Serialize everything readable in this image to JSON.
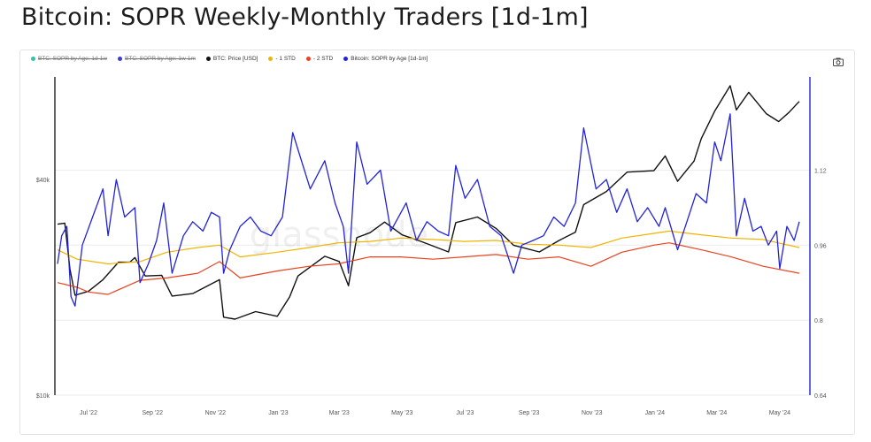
{
  "page": {
    "title": "Bitcoin: SOPR Weekly-Monthly Traders [1d-1m]"
  },
  "watermark": "glassnode",
  "legend": [
    {
      "label": "BTC: SOPR by Age: 1d-1w",
      "color": "#2ec4a5",
      "enabled": false
    },
    {
      "label": "BTC: SOPR by Age: 1w-1m",
      "color": "#3b3bd6",
      "enabled": false
    },
    {
      "label": "BTC: Price [USD]",
      "color": "#111111",
      "enabled": true
    },
    {
      "label": "- 1 STD",
      "color": "#f0b400",
      "enabled": true
    },
    {
      "label": "- 2 STD",
      "color": "#e8431e",
      "enabled": true
    },
    {
      "label": "Bitcoin: SOPR by Age [1d-1m]",
      "color": "#2323d8",
      "enabled": true
    }
  ],
  "toolbar": {
    "screenshot_icon": "camera-icon"
  },
  "chart_data": {
    "type": "line",
    "left_axis": {
      "label": "",
      "scale": "log",
      "range": [
        10000,
        73000
      ],
      "ticks": [
        "$10k",
        "$40k"
      ]
    },
    "right_axis": {
      "label": "",
      "scale": "linear",
      "range": [
        0.64,
        1.3
      ],
      "ticks": [
        "0.64",
        "0.8",
        "0.96",
        "1.12"
      ]
    },
    "x_range": [
      "2022-06-01",
      "2024-05-20"
    ],
    "x_ticks": [
      "Jul '22",
      "Sep '22",
      "Nov '22",
      "Jan '23",
      "Mar '23",
      "May '23",
      "Jul '23",
      "Sep '23",
      "Nov '23",
      "Jan '24",
      "Mar '24",
      "May '24"
    ],
    "series": [
      {
        "name": "BTC: Price [USD]",
        "axis": "left",
        "color": "#111111",
        "points": [
          [
            "2022-06-01",
            30000
          ],
          [
            "2022-06-08",
            30200
          ],
          [
            "2022-06-13",
            22500
          ],
          [
            "2022-06-18",
            19000
          ],
          [
            "2022-07-01",
            19500
          ],
          [
            "2022-07-15",
            21000
          ],
          [
            "2022-07-30",
            23500
          ],
          [
            "2022-08-10",
            23500
          ],
          [
            "2022-08-15",
            24200
          ],
          [
            "2022-08-25",
            21500
          ],
          [
            "2022-09-10",
            21600
          ],
          [
            "2022-09-20",
            18900
          ],
          [
            "2022-10-10",
            19200
          ],
          [
            "2022-11-05",
            21000
          ],
          [
            "2022-11-09",
            16500
          ],
          [
            "2022-11-20",
            16300
          ],
          [
            "2022-12-10",
            17100
          ],
          [
            "2022-12-31",
            16600
          ],
          [
            "2023-01-12",
            18800
          ],
          [
            "2023-01-20",
            21500
          ],
          [
            "2023-02-15",
            24400
          ],
          [
            "2023-03-01",
            23600
          ],
          [
            "2023-03-10",
            20200
          ],
          [
            "2023-03-18",
            27500
          ],
          [
            "2023-03-31",
            28400
          ],
          [
            "2023-04-14",
            30400
          ],
          [
            "2023-05-01",
            28000
          ],
          [
            "2023-05-20",
            26800
          ],
          [
            "2023-06-15",
            25100
          ],
          [
            "2023-06-22",
            30300
          ],
          [
            "2023-07-13",
            31400
          ],
          [
            "2023-07-31",
            29200
          ],
          [
            "2023-08-17",
            26200
          ],
          [
            "2023-09-11",
            25100
          ],
          [
            "2023-09-30",
            27000
          ],
          [
            "2023-10-16",
            28500
          ],
          [
            "2023-10-24",
            34000
          ],
          [
            "2023-11-15",
            37000
          ],
          [
            "2023-12-05",
            41900
          ],
          [
            "2023-12-31",
            42300
          ],
          [
            "2024-01-11",
            46500
          ],
          [
            "2024-01-23",
            39500
          ],
          [
            "2024-02-08",
            45000
          ],
          [
            "2024-02-15",
            52000
          ],
          [
            "2024-02-28",
            62000
          ],
          [
            "2024-03-14",
            73000
          ],
          [
            "2024-03-20",
            62500
          ],
          [
            "2024-04-01",
            70000
          ],
          [
            "2024-04-18",
            61000
          ],
          [
            "2024-04-30",
            58000
          ],
          [
            "2024-05-10",
            61500
          ],
          [
            "2024-05-20",
            66000
          ]
        ]
      },
      {
        "name": "- 1 STD",
        "axis": "right",
        "color": "#f0b400",
        "points": [
          [
            "2022-06-01",
            0.95
          ],
          [
            "2022-06-20",
            0.93
          ],
          [
            "2022-07-20",
            0.92
          ],
          [
            "2022-08-20",
            0.925
          ],
          [
            "2022-09-15",
            0.945
          ],
          [
            "2022-10-15",
            0.955
          ],
          [
            "2022-11-05",
            0.96
          ],
          [
            "2022-11-25",
            0.935
          ],
          [
            "2022-12-31",
            0.945
          ],
          [
            "2023-01-31",
            0.955
          ],
          [
            "2023-02-28",
            0.965
          ],
          [
            "2023-03-31",
            0.968
          ],
          [
            "2023-04-30",
            0.975
          ],
          [
            "2023-05-31",
            0.972
          ],
          [
            "2023-06-30",
            0.968
          ],
          [
            "2023-07-31",
            0.97
          ],
          [
            "2023-08-31",
            0.962
          ],
          [
            "2023-09-30",
            0.96
          ],
          [
            "2023-10-31",
            0.955
          ],
          [
            "2023-11-30",
            0.975
          ],
          [
            "2023-12-31",
            0.985
          ],
          [
            "2024-01-15",
            0.99
          ],
          [
            "2024-02-15",
            0.982
          ],
          [
            "2024-03-15",
            0.975
          ],
          [
            "2024-04-15",
            0.972
          ],
          [
            "2024-05-20",
            0.955
          ]
        ]
      },
      {
        "name": "- 2 STD",
        "axis": "right",
        "color": "#e8431e",
        "points": [
          [
            "2022-06-01",
            0.88
          ],
          [
            "2022-06-20",
            0.87
          ],
          [
            "2022-07-01",
            0.86
          ],
          [
            "2022-07-20",
            0.855
          ],
          [
            "2022-08-20",
            0.885
          ],
          [
            "2022-09-15",
            0.89
          ],
          [
            "2022-10-15",
            0.9
          ],
          [
            "2022-11-05",
            0.925
          ],
          [
            "2022-11-25",
            0.89
          ],
          [
            "2022-12-31",
            0.905
          ],
          [
            "2023-01-31",
            0.915
          ],
          [
            "2023-02-28",
            0.92
          ],
          [
            "2023-03-31",
            0.935
          ],
          [
            "2023-04-30",
            0.935
          ],
          [
            "2023-05-31",
            0.93
          ],
          [
            "2023-06-30",
            0.935
          ],
          [
            "2023-07-31",
            0.94
          ],
          [
            "2023-08-31",
            0.93
          ],
          [
            "2023-09-30",
            0.935
          ],
          [
            "2023-10-31",
            0.915
          ],
          [
            "2023-11-30",
            0.945
          ],
          [
            "2023-12-31",
            0.96
          ],
          [
            "2024-01-15",
            0.965
          ],
          [
            "2024-02-15",
            0.95
          ],
          [
            "2024-03-15",
            0.935
          ],
          [
            "2024-04-15",
            0.915
          ],
          [
            "2024-05-20",
            0.9
          ]
        ]
      },
      {
        "name": "Bitcoin: SOPR by Age [1d-1m]",
        "axis": "right",
        "color": "#2323d8",
        "points": [
          [
            "2022-06-01",
            0.92
          ],
          [
            "2022-06-05",
            0.98
          ],
          [
            "2022-06-10",
            1.0
          ],
          [
            "2022-06-14",
            0.85
          ],
          [
            "2022-06-18",
            0.83
          ],
          [
            "2022-06-25",
            0.96
          ],
          [
            "2022-07-05",
            1.02
          ],
          [
            "2022-07-15",
            1.08
          ],
          [
            "2022-07-20",
            0.98
          ],
          [
            "2022-07-28",
            1.1
          ],
          [
            "2022-08-05",
            1.02
          ],
          [
            "2022-08-15",
            1.04
          ],
          [
            "2022-08-20",
            0.88
          ],
          [
            "2022-08-28",
            0.92
          ],
          [
            "2022-09-05",
            0.97
          ],
          [
            "2022-09-12",
            1.05
          ],
          [
            "2022-09-20",
            0.9
          ],
          [
            "2022-10-01",
            0.98
          ],
          [
            "2022-10-10",
            1.01
          ],
          [
            "2022-10-20",
            0.99
          ],
          [
            "2022-10-28",
            1.03
          ],
          [
            "2022-11-05",
            1.02
          ],
          [
            "2022-11-09",
            0.9
          ],
          [
            "2022-11-15",
            0.95
          ],
          [
            "2022-11-25",
            1.0
          ],
          [
            "2022-12-05",
            1.02
          ],
          [
            "2022-12-15",
            0.99
          ],
          [
            "2022-12-25",
            0.98
          ],
          [
            "2023-01-05",
            1.02
          ],
          [
            "2023-01-15",
            1.2
          ],
          [
            "2023-01-22",
            1.15
          ],
          [
            "2023-02-01",
            1.08
          ],
          [
            "2023-02-15",
            1.14
          ],
          [
            "2023-02-25",
            1.05
          ],
          [
            "2023-03-05",
            1.0
          ],
          [
            "2023-03-10",
            0.9
          ],
          [
            "2023-03-18",
            1.18
          ],
          [
            "2023-03-28",
            1.09
          ],
          [
            "2023-04-10",
            1.12
          ],
          [
            "2023-04-20",
            0.99
          ],
          [
            "2023-05-05",
            1.05
          ],
          [
            "2023-05-15",
            0.97
          ],
          [
            "2023-05-25",
            1.01
          ],
          [
            "2023-06-05",
            0.99
          ],
          [
            "2023-06-15",
            0.98
          ],
          [
            "2023-06-22",
            1.13
          ],
          [
            "2023-07-01",
            1.06
          ],
          [
            "2023-07-13",
            1.1
          ],
          [
            "2023-07-25",
            1.0
          ],
          [
            "2023-08-05",
            0.98
          ],
          [
            "2023-08-17",
            0.9
          ],
          [
            "2023-08-25",
            0.96
          ],
          [
            "2023-09-05",
            0.97
          ],
          [
            "2023-09-15",
            0.98
          ],
          [
            "2023-09-25",
            1.02
          ],
          [
            "2023-10-05",
            1.0
          ],
          [
            "2023-10-16",
            1.05
          ],
          [
            "2023-10-24",
            1.21
          ],
          [
            "2023-11-05",
            1.08
          ],
          [
            "2023-11-15",
            1.1
          ],
          [
            "2023-11-25",
            1.03
          ],
          [
            "2023-12-05",
            1.08
          ],
          [
            "2023-12-15",
            1.01
          ],
          [
            "2023-12-25",
            1.04
          ],
          [
            "2024-01-05",
            1.0
          ],
          [
            "2024-01-11",
            1.04
          ],
          [
            "2024-01-23",
            0.95
          ],
          [
            "2024-02-01",
            1.01
          ],
          [
            "2024-02-10",
            1.07
          ],
          [
            "2024-02-20",
            1.05
          ],
          [
            "2024-02-28",
            1.18
          ],
          [
            "2024-03-05",
            1.14
          ],
          [
            "2024-03-14",
            1.24
          ],
          [
            "2024-03-20",
            0.98
          ],
          [
            "2024-03-28",
            1.06
          ],
          [
            "2024-04-05",
            0.99
          ],
          [
            "2024-04-13",
            1.0
          ],
          [
            "2024-04-20",
            0.96
          ],
          [
            "2024-04-28",
            0.99
          ],
          [
            "2024-05-01",
            0.91
          ],
          [
            "2024-05-08",
            1.0
          ],
          [
            "2024-05-15",
            0.97
          ],
          [
            "2024-05-20",
            1.01
          ]
        ]
      }
    ]
  }
}
